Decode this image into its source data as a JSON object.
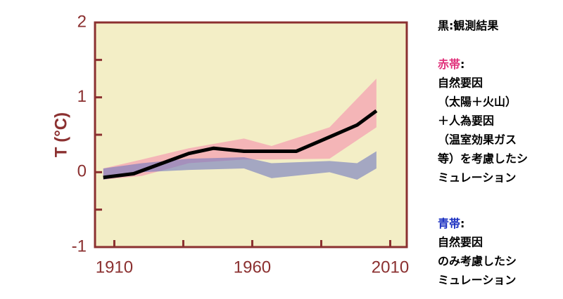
{
  "chart_data": {
    "type": "line",
    "y_label": "T (°C)",
    "xlim": [
      1903,
      2016
    ],
    "xticks": [
      1910,
      1960,
      2010
    ],
    "x_minor_ticks": [
      1935,
      1985
    ],
    "ylim": [
      -1,
      2
    ],
    "yticks": [
      -1,
      0,
      1,
      2
    ],
    "y_minor_ticks": [
      -0.5,
      0.5,
      1.5
    ],
    "legend_separator": ":",
    "series": [
      {
        "name": "黒",
        "type": "line",
        "color": "#000000",
        "x": [
          1906,
          1917,
          1937,
          1946,
          1957,
          1976,
          1988,
          1998,
          2005
        ],
        "values": [
          -0.07,
          -0.02,
          0.25,
          0.32,
          0.28,
          0.28,
          0.47,
          0.63,
          0.82
        ],
        "description": [
          "観測結果"
        ]
      },
      {
        "name": "赤帯",
        "type": "band",
        "color": "#f58fae",
        "x": [
          1906,
          1920,
          1937,
          1957,
          1967,
          1988,
          2005
        ],
        "upper": [
          0.05,
          0.17,
          0.32,
          0.45,
          0.35,
          0.6,
          1.25
        ],
        "lower": [
          -0.1,
          -0.05,
          0.12,
          0.17,
          0.17,
          0.18,
          0.6
        ],
        "description": [
          "自然要因",
          "（太陽＋火山）",
          "＋人為要因",
          "（温室効果ガス",
          "等）を考慮したシ",
          "ミュレーション"
        ]
      },
      {
        "name": "青帯",
        "type": "band",
        "color": "#6f78c0",
        "x": [
          1906,
          1920,
          1937,
          1957,
          1967,
          1988,
          1998,
          2005
        ],
        "upper": [
          0.05,
          0.12,
          0.18,
          0.2,
          0.12,
          0.15,
          0.12,
          0.28
        ],
        "lower": [
          -0.1,
          0.0,
          0.03,
          0.05,
          -0.08,
          0.0,
          -0.1,
          0.05
        ],
        "description": [
          "自然要因",
          "のみ考慮したシ",
          "ミュレーション"
        ]
      }
    ]
  }
}
